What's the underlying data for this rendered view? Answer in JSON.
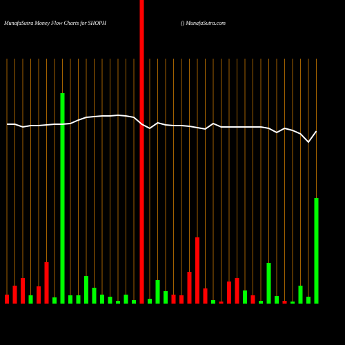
{
  "chart_data": {
    "type": "bar",
    "title": "MunafaSutra  Money Flow  Charts for SHOPH",
    "subtitle": "() MunafaSutra.com",
    "categories": [
      null,
      null,
      null,
      null,
      null,
      null,
      null,
      null,
      null,
      null,
      null,
      null,
      null,
      null,
      null,
      null,
      null,
      null,
      null,
      null,
      null,
      null,
      null,
      null,
      null,
      null,
      null,
      null,
      null,
      null,
      null,
      null,
      null,
      null,
      null,
      null,
      null,
      null,
      null,
      null
    ],
    "values": [
      13,
      26,
      37,
      12,
      25,
      60,
      9,
      305,
      12,
      12,
      40,
      23,
      13,
      10,
      4,
      13,
      5,
      440,
      7,
      34,
      18,
      13,
      12,
      46,
      96,
      22,
      5,
      3,
      32,
      37,
      19,
      12,
      4,
      59,
      11,
      4,
      3,
      26,
      10,
      153
    ],
    "colors": [
      "#ff0000",
      "#ff0000",
      "#ff0000",
      "#00ff00",
      "#ff0000",
      "#ff0000",
      "#00ff00",
      "#00ff00",
      "#00ff00",
      "#00ff00",
      "#00ff00",
      "#00ff00",
      "#00ff00",
      "#00ff00",
      "#00ff00",
      "#00ff00",
      "#00ff00",
      "#ff0000",
      "#00ff00",
      "#00ff00",
      "#00ff00",
      "#ff0000",
      "#ff0000",
      "#ff0000",
      "#ff0000",
      "#ff0000",
      "#00ff00",
      "#ff0000",
      "#ff0000",
      "#ff0000",
      "#00ff00",
      "#ff0000",
      "#00ff00",
      "#00ff00",
      "#00ff00",
      "#ff0000",
      "#00ff00",
      "#00ff00",
      "#00ff00",
      "#00ff00"
    ],
    "ylim": [
      0,
      440
    ],
    "line": {
      "axis": "y2",
      "color": "#ffffff",
      "values": [
        260,
        260,
        256,
        258,
        258,
        259,
        260,
        260,
        261,
        266,
        270,
        271,
        272,
        272,
        273,
        272,
        270,
        260,
        254,
        262,
        259,
        258,
        258,
        257,
        255,
        253,
        261,
        256,
        256,
        256,
        256,
        256,
        256,
        254,
        248,
        254,
        251,
        246,
        234,
        250
      ]
    },
    "y2lim": [
      0,
      440
    ],
    "grid_color": "#cc7a00"
  }
}
